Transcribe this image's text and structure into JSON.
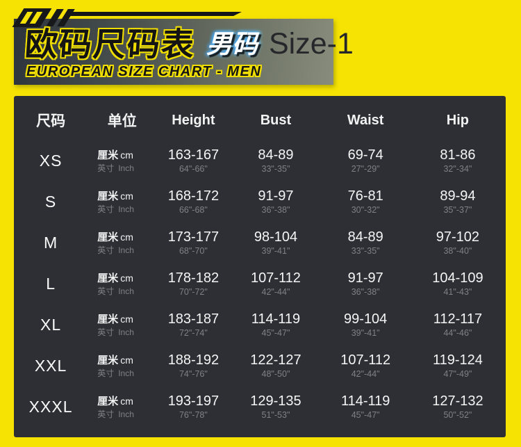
{
  "header": {
    "title_cn": "欧码尺码表",
    "badge_cn": "男码",
    "size_label": "Size-1",
    "subtitle": "EUROPEAN SIZE CHART - MEN"
  },
  "colors": {
    "background_yellow": "#F6E303",
    "panel_charcoal": "#2D2F34",
    "outline_yellow": "#F0DE00",
    "badge_glow_blue": "#4FB7FF",
    "text_white": "#F2F2F2",
    "text_gray": "#7F8186",
    "size_label_dark": "#26272B"
  },
  "table": {
    "headers": {
      "size": "尺码",
      "unit": "单位",
      "height": "Height",
      "bust": "Bust",
      "waist": "Waist",
      "hip": "Hip"
    },
    "units": {
      "cm_cn": "厘米",
      "cm_en": "cm",
      "inch_cn": "英寸",
      "inch_en": "Inch"
    },
    "rows": [
      {
        "size": "XS",
        "height_cm": "163-167",
        "height_in": "64\"-66\"",
        "bust_cm": "84-89",
        "bust_in": "33\"-35\"",
        "waist_cm": "69-74",
        "waist_in": "27\"-29\"",
        "hip_cm": "81-86",
        "hip_in": "32\"-34\""
      },
      {
        "size": "S",
        "height_cm": "168-172",
        "height_in": "66\"-68\"",
        "bust_cm": "91-97",
        "bust_in": "36\"-38\"",
        "waist_cm": "76-81",
        "waist_in": "30\"-32\"",
        "hip_cm": "89-94",
        "hip_in": "35\"-37\""
      },
      {
        "size": "M",
        "height_cm": "173-177",
        "height_in": "68\"-70\"",
        "bust_cm": "98-104",
        "bust_in": "39\"-41\"",
        "waist_cm": "84-89",
        "waist_in": "33\"-35\"",
        "hip_cm": "97-102",
        "hip_in": "38\"-40\""
      },
      {
        "size": "L",
        "height_cm": "178-182",
        "height_in": "70\"-72\"",
        "bust_cm": "107-112",
        "bust_in": "42\"-44\"",
        "waist_cm": "91-97",
        "waist_in": "36\"-38\"",
        "hip_cm": "104-109",
        "hip_in": "41\"-43\""
      },
      {
        "size": "XL",
        "height_cm": "183-187",
        "height_in": "72\"-74\"",
        "bust_cm": "114-119",
        "bust_in": "45\"-47\"",
        "waist_cm": "99-104",
        "waist_in": "39\"-41\"",
        "hip_cm": "112-117",
        "hip_in": "44\"-46\""
      },
      {
        "size": "XXL",
        "height_cm": "188-192",
        "height_in": "74\"-76\"",
        "bust_cm": "122-127",
        "bust_in": "48\"-50\"",
        "waist_cm": "107-112",
        "waist_in": "42\"-44\"",
        "hip_cm": "119-124",
        "hip_in": "47\"-49\""
      },
      {
        "size": "XXXL",
        "height_cm": "193-197",
        "height_in": "76\"-78\"",
        "bust_cm": "129-135",
        "bust_in": "51\"-53\"",
        "waist_cm": "114-119",
        "waist_in": "45\"-47\"",
        "hip_cm": "127-132",
        "hip_in": "50\"-52\""
      }
    ]
  }
}
